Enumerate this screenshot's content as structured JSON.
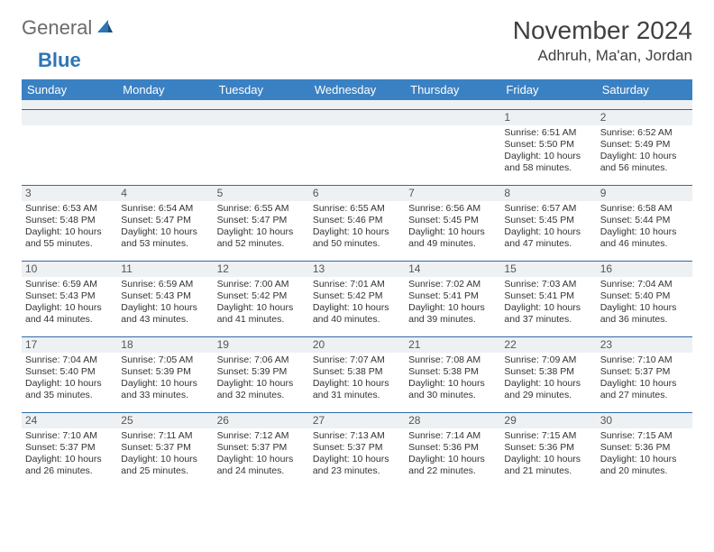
{
  "logo": {
    "text1": "General",
    "text2": "Blue"
  },
  "title": "November 2024",
  "location": "Adhruh, Ma'an, Jordan",
  "colors": {
    "header_bg": "#3a81c3",
    "header_fg": "#ffffff",
    "rule": "#2f6aa8",
    "spacer_bg": "#eef1f3",
    "text": "#333333",
    "logo_gray": "#6b6b6b",
    "logo_blue": "#2e75b6"
  },
  "weekdays": [
    "Sunday",
    "Monday",
    "Tuesday",
    "Wednesday",
    "Thursday",
    "Friday",
    "Saturday"
  ],
  "weeks": [
    [
      null,
      null,
      null,
      null,
      null,
      {
        "d": "1",
        "sr": "6:51 AM",
        "ss": "5:50 PM",
        "dl": "Daylight: 10 hours and 58 minutes."
      },
      {
        "d": "2",
        "sr": "6:52 AM",
        "ss": "5:49 PM",
        "dl": "Daylight: 10 hours and 56 minutes."
      }
    ],
    [
      {
        "d": "3",
        "sr": "6:53 AM",
        "ss": "5:48 PM",
        "dl": "Daylight: 10 hours and 55 minutes."
      },
      {
        "d": "4",
        "sr": "6:54 AM",
        "ss": "5:47 PM",
        "dl": "Daylight: 10 hours and 53 minutes."
      },
      {
        "d": "5",
        "sr": "6:55 AM",
        "ss": "5:47 PM",
        "dl": "Daylight: 10 hours and 52 minutes."
      },
      {
        "d": "6",
        "sr": "6:55 AM",
        "ss": "5:46 PM",
        "dl": "Daylight: 10 hours and 50 minutes."
      },
      {
        "d": "7",
        "sr": "6:56 AM",
        "ss": "5:45 PM",
        "dl": "Daylight: 10 hours and 49 minutes."
      },
      {
        "d": "8",
        "sr": "6:57 AM",
        "ss": "5:45 PM",
        "dl": "Daylight: 10 hours and 47 minutes."
      },
      {
        "d": "9",
        "sr": "6:58 AM",
        "ss": "5:44 PM",
        "dl": "Daylight: 10 hours and 46 minutes."
      }
    ],
    [
      {
        "d": "10",
        "sr": "6:59 AM",
        "ss": "5:43 PM",
        "dl": "Daylight: 10 hours and 44 minutes."
      },
      {
        "d": "11",
        "sr": "6:59 AM",
        "ss": "5:43 PM",
        "dl": "Daylight: 10 hours and 43 minutes."
      },
      {
        "d": "12",
        "sr": "7:00 AM",
        "ss": "5:42 PM",
        "dl": "Daylight: 10 hours and 41 minutes."
      },
      {
        "d": "13",
        "sr": "7:01 AM",
        "ss": "5:42 PM",
        "dl": "Daylight: 10 hours and 40 minutes."
      },
      {
        "d": "14",
        "sr": "7:02 AM",
        "ss": "5:41 PM",
        "dl": "Daylight: 10 hours and 39 minutes."
      },
      {
        "d": "15",
        "sr": "7:03 AM",
        "ss": "5:41 PM",
        "dl": "Daylight: 10 hours and 37 minutes."
      },
      {
        "d": "16",
        "sr": "7:04 AM",
        "ss": "5:40 PM",
        "dl": "Daylight: 10 hours and 36 minutes."
      }
    ],
    [
      {
        "d": "17",
        "sr": "7:04 AM",
        "ss": "5:40 PM",
        "dl": "Daylight: 10 hours and 35 minutes."
      },
      {
        "d": "18",
        "sr": "7:05 AM",
        "ss": "5:39 PM",
        "dl": "Daylight: 10 hours and 33 minutes."
      },
      {
        "d": "19",
        "sr": "7:06 AM",
        "ss": "5:39 PM",
        "dl": "Daylight: 10 hours and 32 minutes."
      },
      {
        "d": "20",
        "sr": "7:07 AM",
        "ss": "5:38 PM",
        "dl": "Daylight: 10 hours and 31 minutes."
      },
      {
        "d": "21",
        "sr": "7:08 AM",
        "ss": "5:38 PM",
        "dl": "Daylight: 10 hours and 30 minutes."
      },
      {
        "d": "22",
        "sr": "7:09 AM",
        "ss": "5:38 PM",
        "dl": "Daylight: 10 hours and 29 minutes."
      },
      {
        "d": "23",
        "sr": "7:10 AM",
        "ss": "5:37 PM",
        "dl": "Daylight: 10 hours and 27 minutes."
      }
    ],
    [
      {
        "d": "24",
        "sr": "7:10 AM",
        "ss": "5:37 PM",
        "dl": "Daylight: 10 hours and 26 minutes."
      },
      {
        "d": "25",
        "sr": "7:11 AM",
        "ss": "5:37 PM",
        "dl": "Daylight: 10 hours and 25 minutes."
      },
      {
        "d": "26",
        "sr": "7:12 AM",
        "ss": "5:37 PM",
        "dl": "Daylight: 10 hours and 24 minutes."
      },
      {
        "d": "27",
        "sr": "7:13 AM",
        "ss": "5:37 PM",
        "dl": "Daylight: 10 hours and 23 minutes."
      },
      {
        "d": "28",
        "sr": "7:14 AM",
        "ss": "5:36 PM",
        "dl": "Daylight: 10 hours and 22 minutes."
      },
      {
        "d": "29",
        "sr": "7:15 AM",
        "ss": "5:36 PM",
        "dl": "Daylight: 10 hours and 21 minutes."
      },
      {
        "d": "30",
        "sr": "7:15 AM",
        "ss": "5:36 PM",
        "dl": "Daylight: 10 hours and 20 minutes."
      }
    ]
  ],
  "labels": {
    "sunrise": "Sunrise:",
    "sunset": "Sunset:"
  }
}
